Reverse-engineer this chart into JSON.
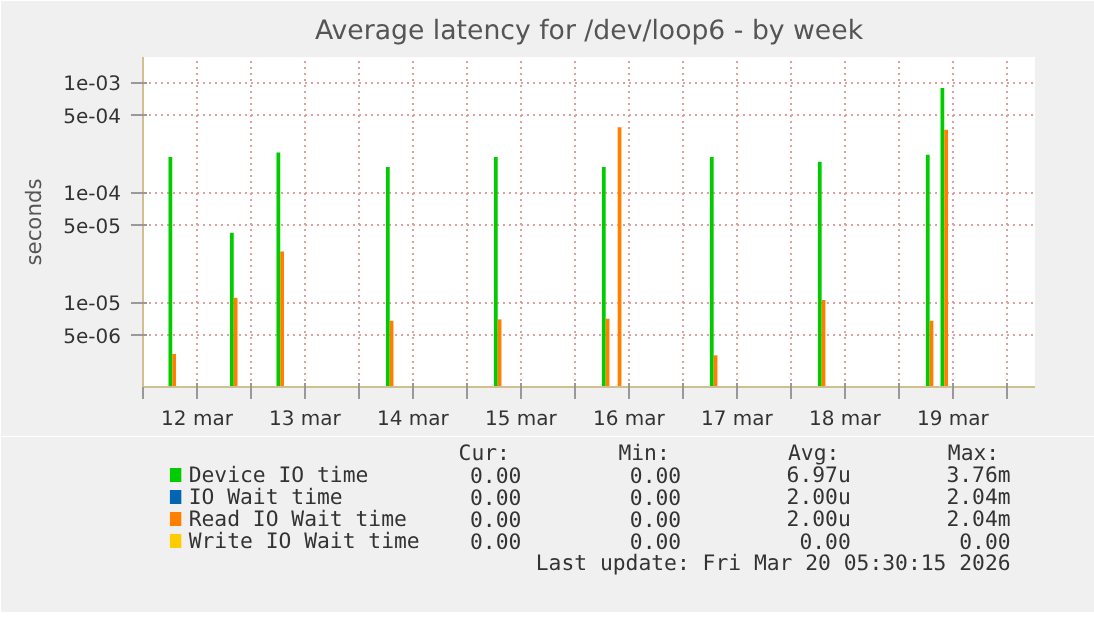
{
  "chart_data": {
    "type": "bar",
    "title": "Average latency for /dev/loop6 - by week",
    "ylabel": "seconds",
    "log": "y",
    "grid": true,
    "legend": "bottom",
    "x": [
      "2026-03-12T06:30",
      "2026-03-12T20:10",
      "2026-03-13T06:30",
      "2026-03-14T06:50",
      "2026-03-15T06:50",
      "2026-03-16T06:50",
      "2026-03-16T09:30",
      "2026-03-17T06:50",
      "2026-03-18T06:50",
      "2026-03-19T06:50",
      "2026-03-19T10:05"
    ],
    "series": [
      {
        "name": "Device IO time",
        "color": "#00cc00",
        "values": [
          0.00021,
          4.3e-05,
          0.00023,
          0.00017,
          0.00021,
          0.00017,
          null,
          0.00021,
          0.00019,
          0.00022,
          0.00089
        ]
      },
      {
        "name": "IO Wait time",
        "color": "#0066b3",
        "values": [
          null,
          null,
          null,
          null,
          null,
          null,
          null,
          null,
          null,
          null,
          null
        ]
      },
      {
        "name": "Read IO Wait time",
        "color": "#ff8000",
        "values": [
          3.4e-06,
          1.1e-05,
          2.9e-05,
          6.8e-06,
          7e-06,
          7.1e-06,
          0.00039,
          3.3e-06,
          1.05e-05,
          6.8e-06,
          0.00037
        ]
      },
      {
        "name": "Write IO Wait time",
        "color": "#ffcc00",
        "values": [
          null,
          null,
          null,
          null,
          null,
          null,
          null,
          null,
          null,
          null,
          null
        ]
      }
    ],
    "xlim": [
      "2026-03-12T00:00",
      "2026-03-20T06:15"
    ],
    "xticks": [
      {
        "value": "2026-03-12T00:00",
        "label": null
      },
      {
        "value": "2026-03-12T12:00",
        "label": "12 mar"
      },
      {
        "value": "2026-03-13T00:00",
        "label": null
      },
      {
        "value": "2026-03-13T12:00",
        "label": "13 mar"
      },
      {
        "value": "2026-03-14T00:00",
        "label": null
      },
      {
        "value": "2026-03-14T12:00",
        "label": "14 mar"
      },
      {
        "value": "2026-03-15T00:00",
        "label": null
      },
      {
        "value": "2026-03-15T12:00",
        "label": "15 mar"
      },
      {
        "value": "2026-03-16T00:00",
        "label": null
      },
      {
        "value": "2026-03-16T12:00",
        "label": "16 mar"
      },
      {
        "value": "2026-03-17T00:00",
        "label": null
      },
      {
        "value": "2026-03-17T12:00",
        "label": "17 mar"
      },
      {
        "value": "2026-03-18T00:00",
        "label": null
      },
      {
        "value": "2026-03-18T12:00",
        "label": "18 mar"
      },
      {
        "value": "2026-03-19T00:00",
        "label": null
      },
      {
        "value": "2026-03-19T12:00",
        "label": "19 mar"
      },
      {
        "value": "2026-03-20T00:00",
        "label": null
      }
    ],
    "ylim": [
      1.7e-06,
      0.0017
    ],
    "yticks": [
      {
        "value": 5e-06,
        "label": "5e-06"
      },
      {
        "value": 1e-05,
        "label": "1e-05"
      },
      {
        "value": 5e-05,
        "label": "5e-05"
      },
      {
        "value": 0.0001,
        "label": "1e-04"
      },
      {
        "value": 0.0005,
        "label": "5e-04"
      },
      {
        "value": 0.001,
        "label": "1e-03"
      }
    ],
    "annotations": [
      "Cur:",
      "Min:",
      "Avg:",
      "Max:",
      "0.00",
      "0.00",
      "6.97u",
      "3.76m",
      "0.00",
      "0.00",
      "2.00u",
      "2.04m",
      "0.00",
      "0.00",
      "2.00u",
      "2.04m",
      "0.00",
      "0.00",
      "0.00",
      "0.00",
      "Last update: Fri Mar 20 05:30:15 2026"
    ]
  }
}
